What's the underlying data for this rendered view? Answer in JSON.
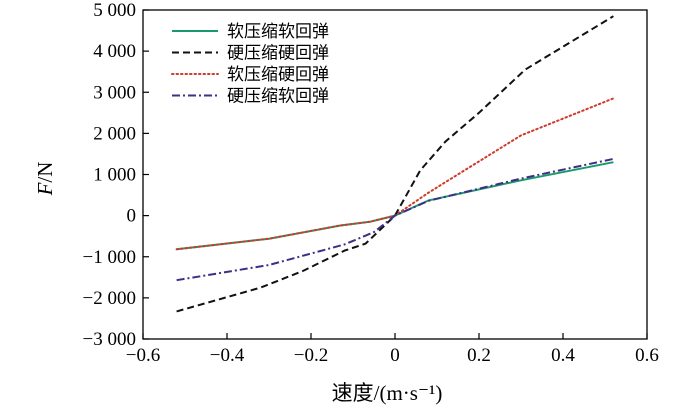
{
  "chart_data": {
    "type": "line",
    "xlabel": "速度/(m·s⁻¹)",
    "ylabel_italic": "F",
    "ylabel_rest": "/N",
    "xlim": [
      -0.6,
      0.6
    ],
    "ylim": [
      -3000,
      5000
    ],
    "x_ticks": [
      -0.6,
      -0.4,
      -0.2,
      0,
      0.2,
      0.4,
      0.6
    ],
    "x_tick_labels": [
      "−0.6",
      "−0.4",
      "−0.2",
      "0",
      "0.2",
      "0.4",
      "0.6"
    ],
    "y_ticks": [
      -3000,
      -2000,
      -1000,
      0,
      1000,
      2000,
      3000,
      4000,
      5000
    ],
    "y_tick_labels": [
      "−3 000",
      "−2 000",
      "−1 000",
      "0",
      "1 000",
      "2 000",
      "3 000",
      "4 000",
      "5 000"
    ],
    "grid": false,
    "legend_position": "top-left",
    "series": [
      {
        "name": "软压缩软回弹",
        "color": "#1a9a6c",
        "dash": "solid",
        "x": [
          -0.52,
          -0.3,
          -0.13,
          -0.06,
          0,
          0.08,
          0.3,
          0.52
        ],
        "y": [
          -820,
          -560,
          -240,
          -150,
          0,
          370,
          860,
          1300
        ]
      },
      {
        "name": "硬压缩硬回弹",
        "color": "#111111",
        "dash": "dashed",
        "x": [
          -0.52,
          -0.32,
          -0.22,
          -0.12,
          -0.07,
          0,
          0.06,
          0.12,
          0.2,
          0.31,
          0.52
        ],
        "y": [
          -2330,
          -1750,
          -1350,
          -850,
          -680,
          0,
          1100,
          1800,
          2500,
          3550,
          4850
        ]
      },
      {
        "name": "软压缩硬回弹",
        "color": "#d03a2a",
        "dash": "dotted",
        "x": [
          -0.52,
          -0.3,
          -0.13,
          -0.06,
          0,
          0.08,
          0.3,
          0.52
        ],
        "y": [
          -820,
          -560,
          -240,
          -150,
          0,
          560,
          1950,
          2850
        ]
      },
      {
        "name": "硬压缩软回弹",
        "color": "#3d2f86",
        "dash": "dashdot",
        "x": [
          -0.52,
          -0.3,
          -0.12,
          -0.05,
          0,
          0.08,
          0.3,
          0.52
        ],
        "y": [
          -1570,
          -1200,
          -700,
          -400,
          0,
          360,
          900,
          1380
        ]
      }
    ]
  }
}
